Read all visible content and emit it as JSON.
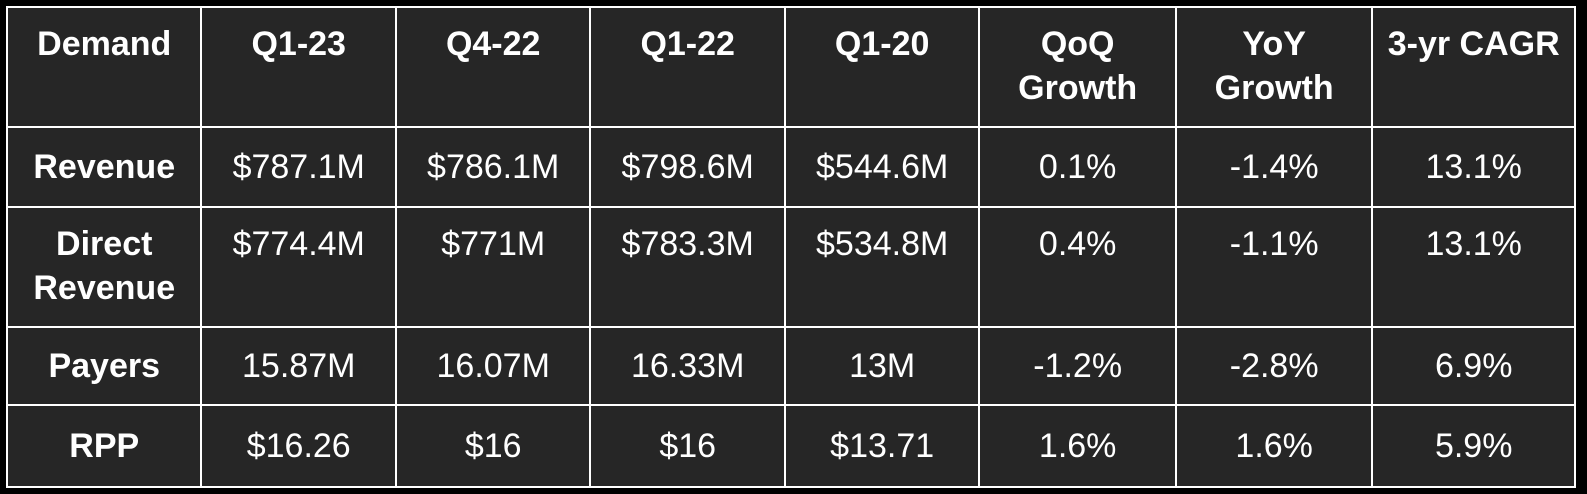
{
  "table": {
    "headers": [
      "Demand",
      "Q1-23",
      "Q4-22",
      "Q1-22",
      "Q1-20",
      "QoQ Growth",
      "YoY Growth",
      "3-yr CAGR"
    ],
    "rows": [
      {
        "label": "Revenue",
        "values": [
          "$787.1M",
          "$786.1M",
          "$798.6M",
          "$544.6M",
          "0.1%",
          "-1.4%",
          "13.1%"
        ]
      },
      {
        "label": "Direct Revenue",
        "values": [
          "$774.4M",
          "$771M",
          "$783.3M",
          "$534.8M",
          "0.4%",
          "-1.1%",
          "13.1%"
        ]
      },
      {
        "label": "Payers",
        "values": [
          "15.87M",
          "16.07M",
          "16.33M",
          "13M",
          "-1.2%",
          "-2.8%",
          "6.9%"
        ]
      },
      {
        "label": "RPP",
        "values": [
          "$16.26",
          "$16",
          "$16",
          "$13.71",
          "1.6%",
          "1.6%",
          "5.9%"
        ]
      }
    ]
  },
  "colors": {
    "background": "#262626",
    "border": "#ffffff",
    "text": "#ffffff"
  }
}
